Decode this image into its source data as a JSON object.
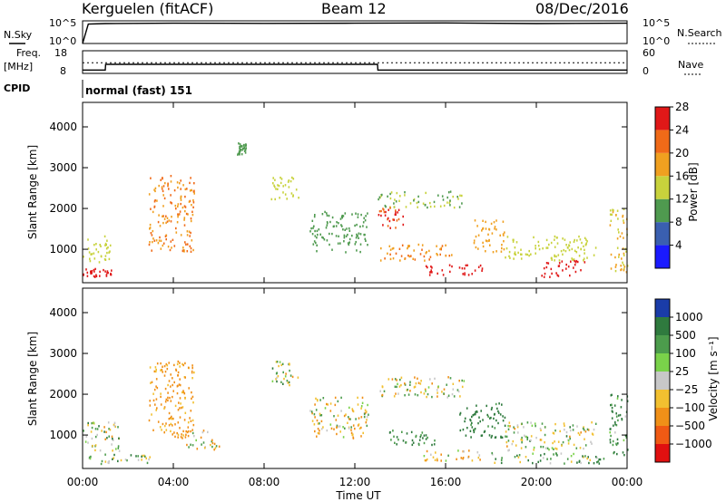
{
  "header": {
    "station": "Kerguelen (fitACF)",
    "beam": "Beam 12",
    "date": "08/Dec/2016"
  },
  "nsky_panel": {
    "left_label": "N.Sky",
    "left_ticks": [
      "10^5",
      "10^0"
    ],
    "right_ticks": [
      "10^5",
      "10^0"
    ],
    "right_label": "N.Search"
  },
  "freq_panel": {
    "left_label_1": "Freq.",
    "left_label_2": "[MHz]",
    "left_ticks": [
      "18",
      "8"
    ],
    "right_ticks": [
      "60",
      "0"
    ],
    "right_label": "Nave"
  },
  "cpid_panel": {
    "left_label": "CPID",
    "mode_text": "normal (fast) 151"
  },
  "power_panel": {
    "ylabel": "Slant Range [km]",
    "yticks": [
      "1000",
      "2000",
      "3000",
      "4000"
    ],
    "colorbar_label": "Power [dB]",
    "colorbar_ticks": [
      "4",
      "8",
      "12",
      "16",
      "20",
      "24",
      "28"
    ],
    "colors": [
      "#1a1aff",
      "#3a5fb0",
      "#4f9a4f",
      "#c8d23c",
      "#f0a020",
      "#f06a18",
      "#e01818"
    ]
  },
  "velocity_panel": {
    "ylabel": "Slant Range [km]",
    "yticks": [
      "1000",
      "2000",
      "3000",
      "4000"
    ],
    "colorbar_label": "Velocity [m s⁻¹]",
    "colorbar_ticks": [
      "1000",
      "500",
      "100",
      "25",
      "−25",
      "−100",
      "−500",
      "−1000"
    ],
    "colors": [
      "#1a3ca8",
      "#2f7a3e",
      "#4c9c4c",
      "#7ad24a",
      "#c8c8c8",
      "#f2c030",
      "#f09018",
      "#f05a14",
      "#e01010"
    ]
  },
  "xaxis": {
    "label": "Time UT",
    "ticks": [
      "00:00",
      "04:00",
      "08:00",
      "12:00",
      "16:00",
      "20:00",
      "00:00"
    ]
  },
  "chart_data": [
    {
      "type": "line",
      "title": "N.Sky / N.Search",
      "x": [
        "00:00",
        "00:15",
        "01:00",
        "04:00",
        "08:00",
        "12:00",
        "16:00",
        "20:00",
        "24:00"
      ],
      "series": [
        {
          "name": "N.Sky",
          "values": [
            1,
            20000,
            25000,
            30000,
            28000,
            30000,
            35000,
            25000,
            30000
          ]
        }
      ],
      "yscale": "log",
      "ylim": [
        1,
        100000
      ]
    },
    {
      "type": "line",
      "title": "Freq. / Nave",
      "x": [
        "00:00",
        "01:00",
        "01:01",
        "13:00",
        "13:01",
        "24:00"
      ],
      "series": [
        {
          "name": "Freq. [MHz]",
          "values": [
            9.5,
            9.5,
            12.0,
            12.0,
            9.5,
            9.5
          ]
        },
        {
          "name": "Nave",
          "values": [
            28,
            28,
            28,
            28,
            28,
            28
          ]
        }
      ],
      "ylim": [
        8,
        18
      ],
      "y2lim": [
        0,
        60
      ]
    },
    {
      "type": "heatmap",
      "title": "Power [dB]",
      "xlabel": "Time UT",
      "ylabel": "Slant Range [km]",
      "xlim": [
        "00:00",
        "24:00"
      ],
      "ylim": [
        180,
        4600
      ],
      "zlim": [
        0,
        30
      ],
      "regions": [
        {
          "t": [
            0.0,
            1.2
          ],
          "r": [
            600,
            1300
          ],
          "value": 14
        },
        {
          "t": [
            0.0,
            1.5
          ],
          "r": [
            300,
            500
          ],
          "value": 26
        },
        {
          "t": [
            2.9,
            4.9
          ],
          "r": [
            900,
            2800
          ],
          "value": 20
        },
        {
          "t": [
            6.8,
            7.2
          ],
          "r": [
            3300,
            3600
          ],
          "value": 10
        },
        {
          "t": [
            8.3,
            9.6
          ],
          "r": [
            2200,
            2800
          ],
          "value": 14
        },
        {
          "t": [
            10.0,
            12.6
          ],
          "r": [
            900,
            1900
          ],
          "value": 10
        },
        {
          "t": [
            13.0,
            16.8
          ],
          "r": [
            2000,
            2400
          ],
          "value": 12
        },
        {
          "t": [
            13.0,
            14.1
          ],
          "r": [
            1500,
            2000
          ],
          "value": 24
        },
        {
          "t": [
            13.1,
            16.4
          ],
          "r": [
            700,
            1100
          ],
          "value": 20
        },
        {
          "t": [
            15.0,
            17.6
          ],
          "r": [
            350,
            600
          ],
          "value": 26
        },
        {
          "t": [
            17.2,
            18.6
          ],
          "r": [
            900,
            1700
          ],
          "value": 18
        },
        {
          "t": [
            18.6,
            22.6
          ],
          "r": [
            700,
            1300
          ],
          "value": 14
        },
        {
          "t": [
            20.2,
            22.2
          ],
          "r": [
            300,
            700
          ],
          "value": 26
        },
        {
          "t": [
            23.2,
            24.0
          ],
          "r": [
            400,
            2000
          ],
          "value": 16
        }
      ]
    },
    {
      "type": "heatmap",
      "title": "Velocity [m s⁻¹]",
      "xlabel": "Time UT",
      "ylabel": "Slant Range [km]",
      "xlim": [
        "00:00",
        "24:00"
      ],
      "ylim": [
        180,
        4600
      ],
      "zlim": [
        -1000,
        1000
      ],
      "regions": [
        {
          "t": [
            0.0,
            1.6
          ],
          "r": [
            500,
            1300
          ],
          "value": 0
        },
        {
          "t": [
            0.0,
            3.0
          ],
          "r": [
            250,
            500
          ],
          "value": 40
        },
        {
          "t": [
            2.9,
            4.9
          ],
          "r": [
            900,
            2800
          ],
          "value": -150
        },
        {
          "t": [
            4.5,
            6.0
          ],
          "r": [
            600,
            1100
          ],
          "value": -50
        },
        {
          "t": [
            8.3,
            9.6
          ],
          "r": [
            2200,
            2800
          ],
          "value": 0
        },
        {
          "t": [
            10.0,
            12.6
          ],
          "r": [
            900,
            1900
          ],
          "value": -60
        },
        {
          "t": [
            13.0,
            16.8
          ],
          "r": [
            1900,
            2400
          ],
          "value": -40
        },
        {
          "t": [
            13.4,
            15.6
          ],
          "r": [
            700,
            1100
          ],
          "value": 150
        },
        {
          "t": [
            15.0,
            17.5
          ],
          "r": [
            350,
            600
          ],
          "value": -80
        },
        {
          "t": [
            16.6,
            18.6
          ],
          "r": [
            900,
            1800
          ],
          "value": 200
        },
        {
          "t": [
            18.6,
            22.6
          ],
          "r": [
            600,
            1300
          ],
          "value": 0
        },
        {
          "t": [
            18.0,
            23.0
          ],
          "r": [
            280,
            550
          ],
          "value": 60
        },
        {
          "t": [
            23.2,
            24.0
          ],
          "r": [
            400,
            2000
          ],
          "value": 120
        }
      ]
    }
  ]
}
